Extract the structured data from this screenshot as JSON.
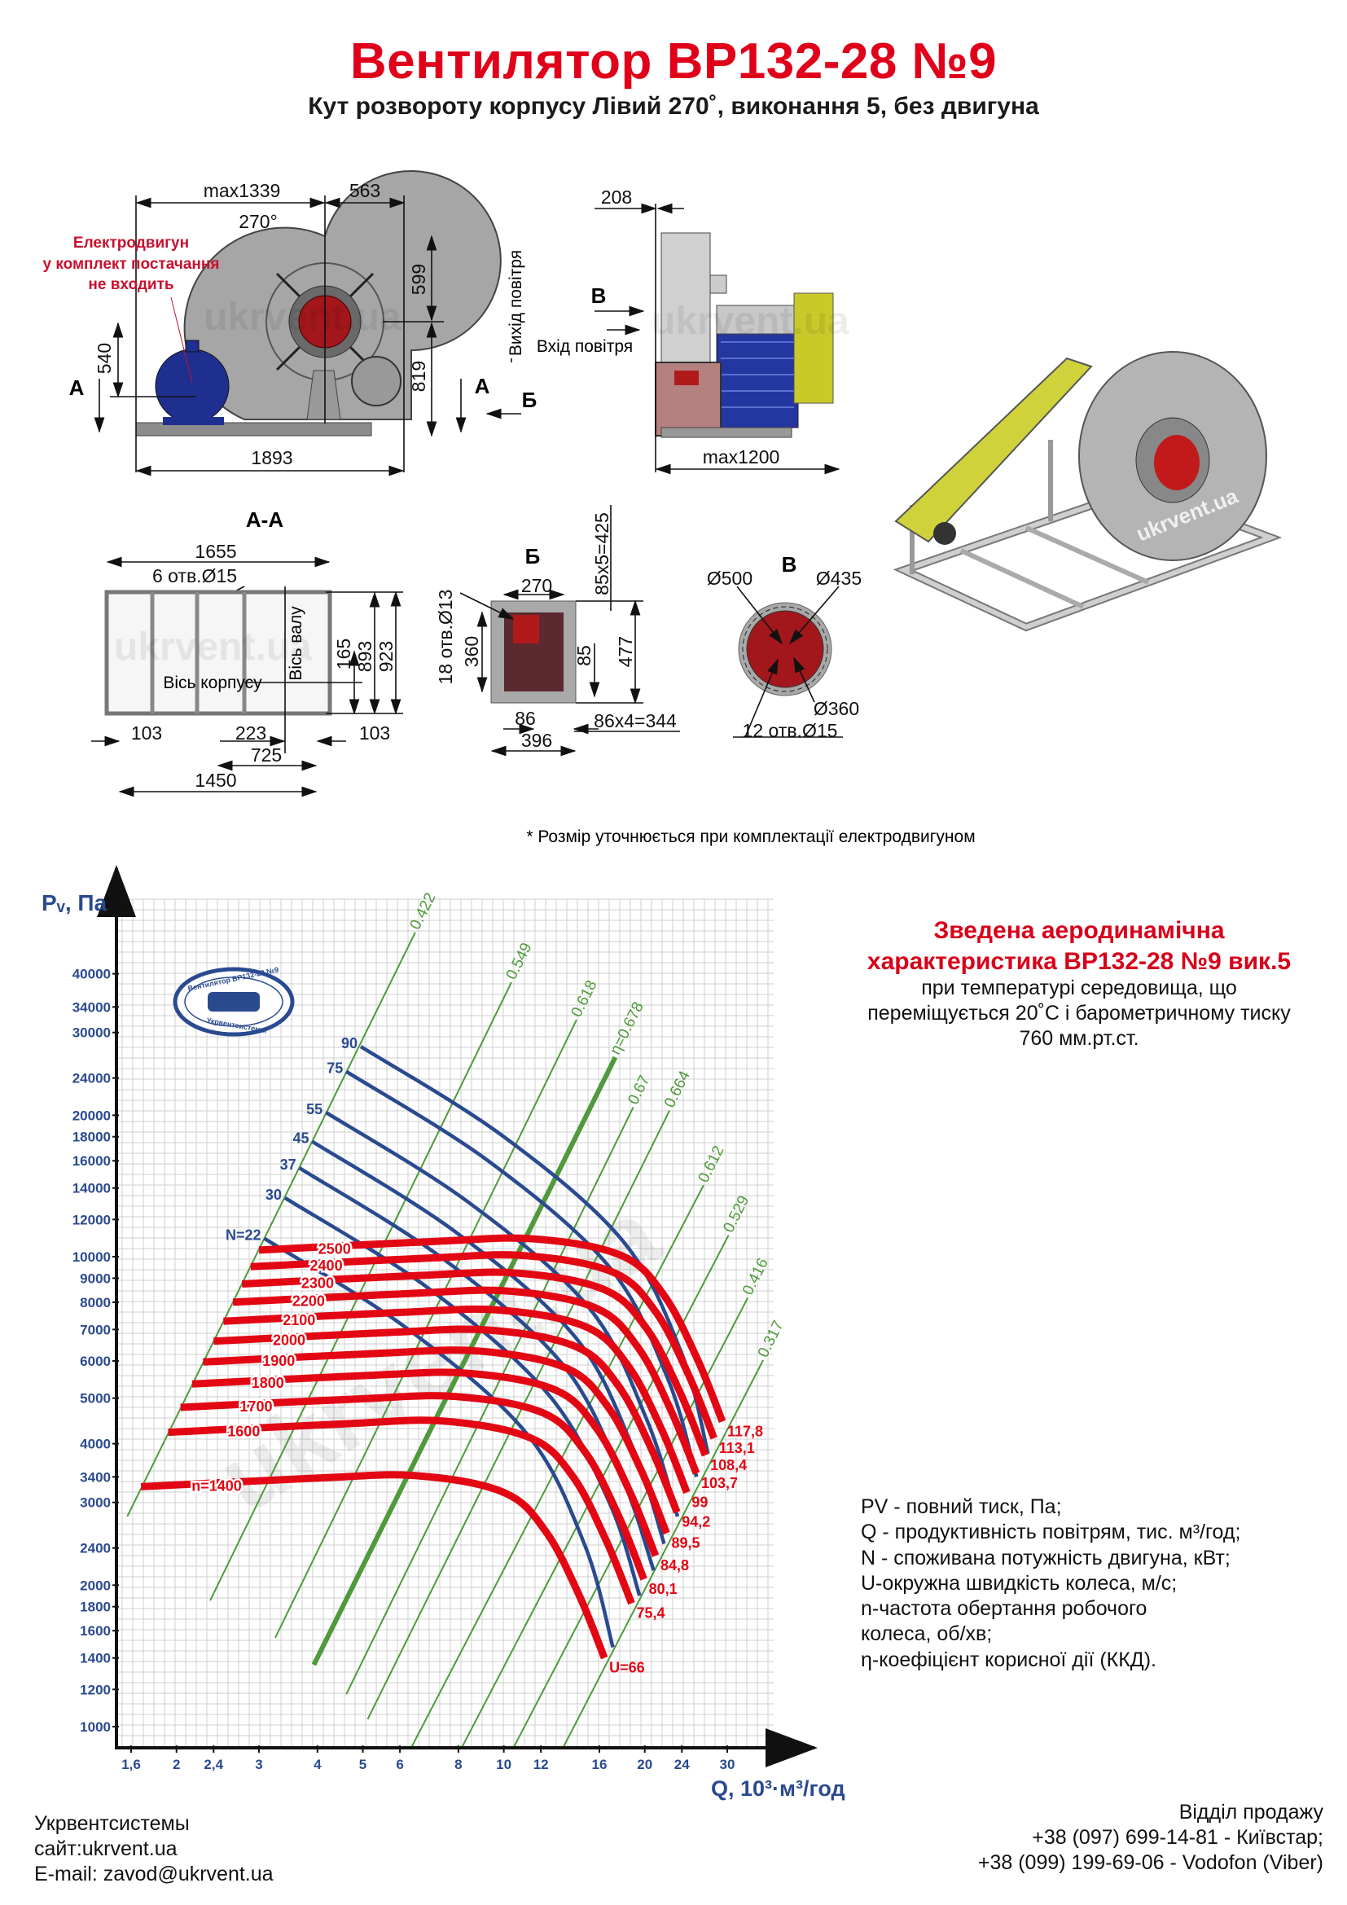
{
  "header": {
    "title": "Вентилятор ВР132-28 №9",
    "subtitle": "Кут розвороту корпусу Лівий 270˚, виконання 5, без двигуна"
  },
  "drawings": {
    "watermark": "ukrvent.ua",
    "side_view": {
      "dim_max1339": "max1339",
      "dim_563": "563",
      "angle": "270°",
      "motor_note": [
        "Електродвигун",
        "у комплект постачання",
        "не входить"
      ],
      "dim_599": "599",
      "dim_819": "819",
      "dim_540": "540",
      "dim_1893": "1893",
      "section_a_left": "А",
      "section_a_right": "А",
      "view_b": "Б",
      "air_outlet": "Вихід повітря",
      "air_inlet": "Вхід повітря"
    },
    "front_view": {
      "dim_208": "208",
      "view_v": "В",
      "dim_max1200": "max1200"
    },
    "section_aa": {
      "title": "А-А",
      "dim_1655": "1655",
      "holes": "6 отв.Ø15",
      "housing_axis": "Вісь корпусу",
      "shaft_axis": "Вісь валу",
      "dim_165": "165",
      "dim_893": "893",
      "dim_923": "923",
      "dim_103_left": "103",
      "dim_223": "223",
      "dim_103_right": "103",
      "dim_725": "725",
      "dim_1450": "1450"
    },
    "view_b": {
      "title": "Б",
      "dim_270": "270",
      "holes": "18 отв.Ø13",
      "dim_360": "360",
      "dim_425": "85x5=425",
      "dim_85": "85",
      "dim_477": "477",
      "dim_86": "86",
      "dim_344": "86x4=344",
      "dim_396": "396"
    },
    "view_v": {
      "title": "В",
      "dim_500": "Ø500",
      "dim_435": "Ø435",
      "dim_360": "Ø360",
      "holes": "12 отв.Ø15"
    },
    "note": "* Розмір уточнюється при комплектації електродвигуном"
  },
  "chart_info": {
    "title_lines": [
      "Зведена аеродинамічна",
      "характеристика ВР132-28 №9 вик.5"
    ],
    "body_lines": [
      "при температурі середовища, що",
      "переміщується 20˚С і барометричному тиску",
      "760 мм.рт.ст."
    ],
    "legend": [
      "PV - повний тиск, Па;",
      "Q - продуктивність повітрям, тис. м³/год;",
      "N - споживана потужність двигуна, кВт;",
      "U-окружна швидкість колеса, м/с;",
      "n-частота обертання робочого",
      "колеса, об/хв;",
      "η-коефіцієнт корисної дії (ККД)."
    ],
    "logo_text": [
      "Вентилятор ВР132-28 №9",
      "Укрвентсистемы"
    ]
  },
  "chart_data": {
    "type": "line",
    "grid": true,
    "colors": {
      "speed": "#e30613",
      "power": "#2a4a90",
      "efficiency": "#4f9a3a",
      "axis_text": "#2a4a90"
    },
    "x_axis": {
      "label": "Q, 10³·м³/год",
      "scale": "log",
      "range": [
        1.55,
        36
      ],
      "ticks": [
        {
          "v": 1.6,
          "l": "1,6"
        },
        {
          "v": 2,
          "l": "2"
        },
        {
          "v": 2.4,
          "l": "2,4"
        },
        {
          "v": 3,
          "l": "3"
        },
        {
          "v": 4,
          "l": "4"
        },
        {
          "v": 5,
          "l": "5"
        },
        {
          "v": 6,
          "l": "6"
        },
        {
          "v": 8,
          "l": "8"
        },
        {
          "v": 10,
          "l": "10"
        },
        {
          "v": 12,
          "l": "12"
        },
        {
          "v": 16,
          "l": "16"
        },
        {
          "v": 20,
          "l": "20"
        },
        {
          "v": 24,
          "l": "24"
        },
        {
          "v": 30,
          "l": "30"
        }
      ]
    },
    "y_axis": {
      "label": "Pᵥ, Па",
      "scale": "log",
      "range": [
        950,
        54000
      ],
      "ticks": [
        {
          "v": 1000,
          "l": "1000"
        },
        {
          "v": 1200,
          "l": "1200"
        },
        {
          "v": 1400,
          "l": "1400"
        },
        {
          "v": 1600,
          "l": "1600"
        },
        {
          "v": 1800,
          "l": "1800"
        },
        {
          "v": 2000,
          "l": "2000"
        },
        {
          "v": 2400,
          "l": "2400"
        },
        {
          "v": 3000,
          "l": "3000"
        },
        {
          "v": 3400,
          "l": "3400"
        },
        {
          "v": 4000,
          "l": "4000"
        },
        {
          "v": 5000,
          "l": "5000"
        },
        {
          "v": 6000,
          "l": "6000"
        },
        {
          "v": 7000,
          "l": "7000"
        },
        {
          "v": 8000,
          "l": "8000"
        },
        {
          "v": 9000,
          "l": "9000"
        },
        {
          "v": 10000,
          "l": "10000"
        },
        {
          "v": 12000,
          "l": "12000"
        },
        {
          "v": 14000,
          "l": "14000"
        },
        {
          "v": 16000,
          "l": "16000"
        },
        {
          "v": 18000,
          "l": "18000"
        },
        {
          "v": 20000,
          "l": "20000"
        },
        {
          "v": 24000,
          "l": "24000"
        },
        {
          "v": 30000,
          "l": "30000"
        },
        {
          "v": 34000,
          "l": "34000"
        },
        {
          "v": 40000,
          "l": "40000"
        }
      ]
    },
    "speed_curves": [
      {
        "label": "n=1400",
        "u_label": "U=66",
        "points": [
          [
            1.68,
            3240
          ],
          [
            4,
            3380
          ],
          [
            6.5,
            3420
          ],
          [
            10,
            3150
          ],
          [
            12.3,
            2600
          ],
          [
            14.5,
            1900
          ],
          [
            16.4,
            1400
          ]
        ]
      },
      {
        "label": "1600",
        "u_label": "75,4",
        "points": [
          [
            1.92,
            4230
          ],
          [
            4.57,
            4410
          ],
          [
            7.43,
            4470
          ],
          [
            11.43,
            4110
          ],
          [
            14.06,
            3400
          ],
          [
            16.57,
            2480
          ],
          [
            18.74,
            1830
          ]
        ]
      },
      {
        "label": "1700",
        "u_label": "80,1",
        "points": [
          [
            2.04,
            4780
          ],
          [
            4.86,
            4980
          ],
          [
            7.89,
            5040
          ],
          [
            12.14,
            4650
          ],
          [
            14.94,
            3830
          ],
          [
            17.61,
            2800
          ],
          [
            19.91,
            2060
          ]
        ]
      },
      {
        "label": "1800",
        "u_label": "84,8",
        "points": [
          [
            2.16,
            5360
          ],
          [
            5.14,
            5590
          ],
          [
            8.36,
            5650
          ],
          [
            12.86,
            5210
          ],
          [
            15.81,
            4300
          ],
          [
            18.64,
            3140
          ],
          [
            21.09,
            2310
          ]
        ]
      },
      {
        "label": "1900",
        "u_label": "89,5",
        "points": [
          [
            2.28,
            5970
          ],
          [
            5.43,
            6230
          ],
          [
            8.82,
            6300
          ],
          [
            13.57,
            5800
          ],
          [
            16.69,
            4790
          ],
          [
            19.68,
            3500
          ],
          [
            22.26,
            2580
          ]
        ]
      },
      {
        "label": "2000",
        "u_label": "94,2",
        "points": [
          [
            2.4,
            6610
          ],
          [
            5.71,
            6900
          ],
          [
            9.29,
            6980
          ],
          [
            14.29,
            6430
          ],
          [
            17.57,
            5310
          ],
          [
            20.71,
            3880
          ],
          [
            23.43,
            2860
          ]
        ]
      },
      {
        "label": "2100",
        "u_label": "99",
        "points": [
          [
            2.52,
            7290
          ],
          [
            6,
            7610
          ],
          [
            9.75,
            7700
          ],
          [
            15,
            7090
          ],
          [
            18.45,
            5850
          ],
          [
            21.75,
            4280
          ],
          [
            24.6,
            3150
          ]
        ]
      },
      {
        "label": "2200",
        "u_label": "103,7",
        "points": [
          [
            2.64,
            8000
          ],
          [
            6.29,
            8350
          ],
          [
            10.21,
            8450
          ],
          [
            15.71,
            7780
          ],
          [
            19.33,
            6420
          ],
          [
            22.79,
            4690
          ],
          [
            25.77,
            3460
          ]
        ]
      },
      {
        "label": "2300",
        "u_label": "108,4",
        "points": [
          [
            2.76,
            8750
          ],
          [
            6.57,
            9120
          ],
          [
            10.68,
            9230
          ],
          [
            16.43,
            8500
          ],
          [
            20.21,
            7020
          ],
          [
            23.82,
            5130
          ],
          [
            26.94,
            3780
          ]
        ]
      },
      {
        "label": "2400",
        "u_label": "113,1",
        "points": [
          [
            2.88,
            9520
          ],
          [
            6.86,
            9930
          ],
          [
            11.14,
            10050
          ],
          [
            17.14,
            9260
          ],
          [
            21.09,
            7640
          ],
          [
            24.86,
            5580
          ],
          [
            28.11,
            4110
          ]
        ]
      },
      {
        "label": "2500",
        "u_label": "117,8",
        "points": [
          [
            3.0,
            10330
          ],
          [
            7.14,
            10780
          ],
          [
            11.61,
            10910
          ],
          [
            17.86,
            10050
          ],
          [
            21.96,
            8290
          ],
          [
            25.89,
            6060
          ],
          [
            29.29,
            4460
          ]
        ]
      }
    ],
    "power_curves": [
      {
        "label": "N=22",
        "points": [
          [
            3.08,
            10940
          ],
          [
            6.22,
            7030
          ],
          [
            11.2,
            4200
          ],
          [
            14.9,
            2430
          ],
          [
            17.1,
            1475
          ]
        ]
      },
      {
        "label": "30",
        "points": [
          [
            3.41,
            13340
          ],
          [
            6.89,
            8580
          ],
          [
            12.4,
            5120
          ],
          [
            16.8,
            3000
          ],
          [
            19.5,
            1900
          ]
        ]
      },
      {
        "label": "37",
        "points": [
          [
            3.66,
            15450
          ],
          [
            7.39,
            9930
          ],
          [
            13.3,
            5930
          ],
          [
            17.8,
            3430
          ],
          [
            20.9,
            2150
          ]
        ]
      },
      {
        "label": "45",
        "points": [
          [
            3.9,
            17580
          ],
          [
            7.88,
            11300
          ],
          [
            14.2,
            6750
          ],
          [
            18.9,
            3900
          ],
          [
            22.0,
            2450
          ]
        ]
      },
      {
        "label": "55",
        "points": [
          [
            4.17,
            20280
          ],
          [
            8.42,
            13040
          ],
          [
            15.2,
            7790
          ],
          [
            20.2,
            4500
          ],
          [
            23.5,
            2800
          ]
        ]
      },
      {
        "label": "75",
        "points": [
          [
            4.61,
            24770
          ],
          [
            9.31,
            15930
          ],
          [
            16.8,
            9510
          ],
          [
            22.4,
            5500
          ],
          [
            25.8,
            3400
          ]
        ]
      },
      {
        "label": "90",
        "points": [
          [
            4.95,
            28000
          ],
          [
            10,
            18000
          ],
          [
            18,
            10770
          ],
          [
            24,
            6210
          ],
          [
            27.3,
            3810
          ]
        ]
      }
    ],
    "efficiency_lines": [
      {
        "label": "0.422",
        "bold": false,
        "points": [
          [
            1.57,
            2800
          ],
          [
            6.47,
            49000
          ]
        ]
      },
      {
        "label": "0.549",
        "bold": false,
        "points": [
          [
            2.36,
            1855
          ],
          [
            10.38,
            38370
          ]
        ]
      },
      {
        "label": "0.618",
        "bold": false,
        "points": [
          [
            3.25,
            1545
          ],
          [
            14.3,
            31920
          ]
        ]
      },
      {
        "label": "η=0.678",
        "bold": true,
        "points": [
          [
            3.93,
            1354
          ],
          [
            17.3,
            26570
          ]
        ]
      },
      {
        "label": "0.67",
        "bold": false,
        "points": [
          [
            4.61,
            1172
          ],
          [
            18.9,
            20800
          ]
        ]
      },
      {
        "label": "0.664",
        "bold": false,
        "points": [
          [
            5.12,
            1037
          ],
          [
            22.6,
            20480
          ]
        ]
      },
      {
        "label": "0.612",
        "bold": false,
        "points": [
          [
            6.35,
            904
          ],
          [
            26.7,
            14190
          ]
        ]
      },
      {
        "label": "0.529",
        "bold": false,
        "points": [
          [
            8.14,
            904
          ],
          [
            30.2,
            11110
          ]
        ]
      },
      {
        "label": "0.416",
        "bold": false,
        "points": [
          [
            10.5,
            904
          ],
          [
            33.2,
            8180
          ]
        ]
      },
      {
        "label": "0.317",
        "bold": false,
        "points": [
          [
            13.4,
            904
          ],
          [
            35.8,
            6025
          ]
        ]
      }
    ]
  },
  "footer": {
    "left": [
      "Укрвентсистемы",
      "сайт:ukrvent.ua",
      "E-mail: zavod@ukrvent.ua"
    ],
    "right": [
      "Відділ продажу",
      "+38 (097) 699-14-81 - Київстар;",
      "+38 (099) 199-69-06 - Vodofon (Viber)"
    ]
  }
}
